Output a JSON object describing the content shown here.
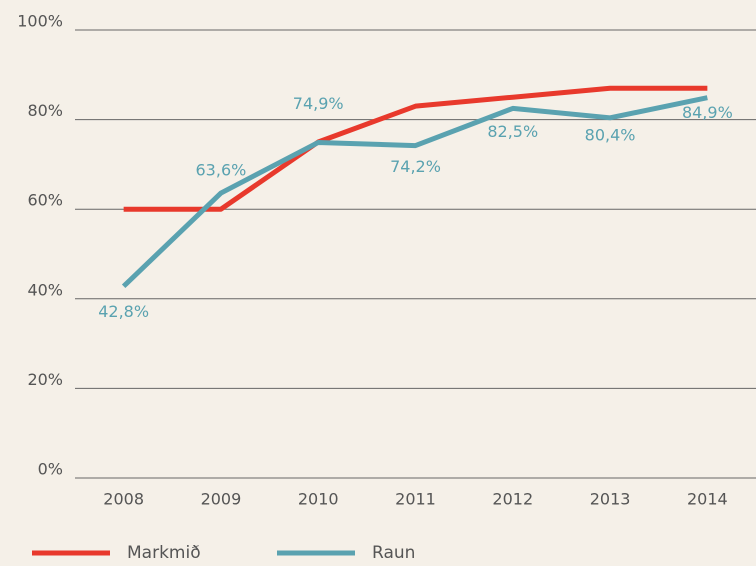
{
  "chart_data": {
    "type": "line",
    "categories": [
      "2008",
      "2009",
      "2010",
      "2011",
      "2012",
      "2013",
      "2014"
    ],
    "series": [
      {
        "name": "Markmið",
        "color": "#e8392c",
        "values": [
          60,
          60,
          75,
          83,
          85,
          87,
          87
        ]
      },
      {
        "name": "Raun",
        "color": "#5aa2b0",
        "values": [
          42.8,
          63.6,
          74.9,
          74.2,
          82.5,
          80.4,
          84.9
        ],
        "value_labels": [
          "42,8%",
          "63,6%",
          "74,9%",
          "74,2%",
          "82,5%",
          "80,4%",
          "84,9%"
        ]
      }
    ],
    "ylim": [
      0,
      100
    ],
    "yticks": [
      {
        "value": 0,
        "label": "0%"
      },
      {
        "value": 20,
        "label": "20%"
      },
      {
        "value": 40,
        "label": "40%"
      },
      {
        "value": 60,
        "label": "60%"
      },
      {
        "value": 80,
        "label": "80%"
      },
      {
        "value": 100,
        "label": "100%"
      }
    ],
    "grid": true
  }
}
